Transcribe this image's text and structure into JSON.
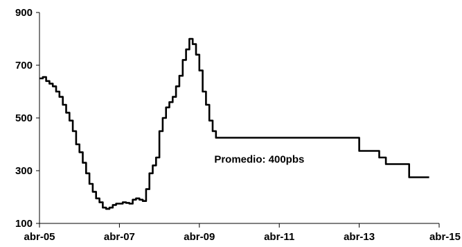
{
  "chart_data": {
    "type": "line",
    "title": "",
    "xlabel": "",
    "ylabel": "",
    "ylim": [
      100,
      900
    ],
    "yticks": [
      100,
      300,
      500,
      700,
      900
    ],
    "xticks": [
      {
        "date": "2005-04",
        "label": "abr-05"
      },
      {
        "date": "2007-04",
        "label": "abr-07"
      },
      {
        "date": "2009-04",
        "label": "abr-09"
      },
      {
        "date": "2011-04",
        "label": "abr-11"
      },
      {
        "date": "2013-04",
        "label": "abr-13"
      },
      {
        "date": "2015-04",
        "label": "abr-15"
      }
    ],
    "xlim": [
      "2005-04",
      "2015-04"
    ],
    "annotation": {
      "text": "Promedio: 400pbs",
      "x": "2010-10",
      "y": 330
    },
    "series": [
      {
        "points": [
          [
            "2005-04",
            650
          ],
          [
            "2005-05",
            655
          ],
          [
            "2005-06",
            640
          ],
          [
            "2005-07",
            630
          ],
          [
            "2005-08",
            620
          ],
          [
            "2005-09",
            600
          ],
          [
            "2005-10",
            580
          ],
          [
            "2005-11",
            550
          ],
          [
            "2005-12",
            520
          ],
          [
            "2006-01",
            490
          ],
          [
            "2006-02",
            450
          ],
          [
            "2006-03",
            400
          ],
          [
            "2006-04",
            370
          ],
          [
            "2006-05",
            330
          ],
          [
            "2006-06",
            290
          ],
          [
            "2006-07",
            250
          ],
          [
            "2006-08",
            220
          ],
          [
            "2006-09",
            195
          ],
          [
            "2006-10",
            180
          ],
          [
            "2006-11",
            160
          ],
          [
            "2006-12",
            155
          ],
          [
            "2007-01",
            160
          ],
          [
            "2007-02",
            170
          ],
          [
            "2007-03",
            175
          ],
          [
            "2007-04",
            175
          ],
          [
            "2007-05",
            180
          ],
          [
            "2007-06",
            178
          ],
          [
            "2007-07",
            175
          ],
          [
            "2007-08",
            190
          ],
          [
            "2007-09",
            195
          ],
          [
            "2007-10",
            190
          ],
          [
            "2007-11",
            185
          ],
          [
            "2007-12",
            230
          ],
          [
            "2008-01",
            290
          ],
          [
            "2008-02",
            320
          ],
          [
            "2008-03",
            350
          ],
          [
            "2008-04",
            450
          ],
          [
            "2008-05",
            500
          ],
          [
            "2008-06",
            540
          ],
          [
            "2008-07",
            560
          ],
          [
            "2008-08",
            580
          ],
          [
            "2008-09",
            620
          ],
          [
            "2008-10",
            660
          ],
          [
            "2008-11",
            720
          ],
          [
            "2008-12",
            760
          ],
          [
            "2009-01",
            800
          ],
          [
            "2009-02",
            780
          ],
          [
            "2009-03",
            740
          ],
          [
            "2009-04",
            680
          ],
          [
            "2009-05",
            600
          ],
          [
            "2009-06",
            550
          ],
          [
            "2009-07",
            490
          ],
          [
            "2009-08",
            450
          ],
          [
            "2009-09",
            425
          ],
          [
            "2013-03",
            425
          ],
          [
            "2013-04",
            375
          ],
          [
            "2013-10",
            350
          ],
          [
            "2013-12",
            325
          ],
          [
            "2014-07",
            275
          ],
          [
            "2015-01",
            275
          ]
        ]
      }
    ]
  }
}
